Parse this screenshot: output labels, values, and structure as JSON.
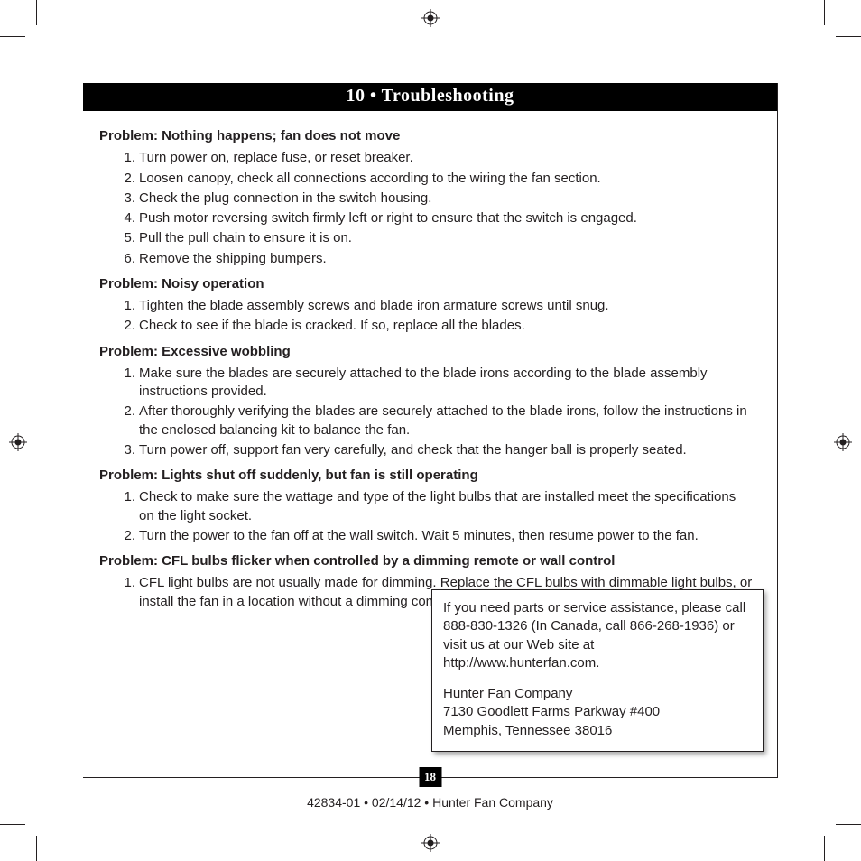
{
  "header": {
    "title": "10 • Troubleshooting"
  },
  "problems": [
    {
      "title": "Problem:  Nothing happens; fan does not move",
      "steps": [
        "Turn power on, replace fuse, or reset breaker.",
        "Loosen canopy, check all connections according to the wiring the fan section.",
        "Check the plug connection in the switch housing.",
        "Push motor reversing switch firmly left or right to ensure that the switch is engaged.",
        "Pull the pull chain to ensure it is on.",
        "Remove the shipping bumpers."
      ]
    },
    {
      "title": "Problem:  Noisy operation",
      "steps": [
        "Tighten the blade assembly screws and blade iron armature screws until snug.",
        "Check to see if the blade is cracked.  If so, replace all the blades."
      ]
    },
    {
      "title": "Problem:  Excessive wobbling",
      "steps": [
        "Make sure the blades are securely attached to the blade irons according to the blade assembly instructions provided.",
        "After thoroughly verifying the blades are securely attached to the blade irons, follow the instructions in the enclosed balancing kit to balance the fan.",
        "Turn power off, support fan very carefully, and check that the hanger ball is properly seated."
      ]
    },
    {
      "title": "Problem:  Lights shut off suddenly, but fan is still operating",
      "steps": [
        "Check to make sure the wattage and type of the light bulbs that are installed meet the specifications on the light socket.",
        "Turn the power to the fan off at the wall switch. Wait 5 minutes, then resume power to the fan."
      ]
    },
    {
      "title": "Problem:  CFL bulbs flicker when controlled by a dimming remote or wall control",
      "steps": [
        "CFL light bulbs are not usually made for dimming. Replace the CFL bulbs with dimmable light bulbs, or install the fan in a location without a dimming control."
      ]
    }
  ],
  "info_box": {
    "p1": "If you need parts or service assistance, please call 888-830-1326 (In Canada, call 866-268-1936) or visit us at our Web site at http://www.hunterfan.com.",
    "p2_l1": "Hunter Fan Company",
    "p2_l2": "7130 Goodlett Farms Parkway #400",
    "p2_l3": "Memphis, Tennessee 38016"
  },
  "page_number": "18",
  "footer": "42834-01  •  02/14/12  •  Hunter Fan Company",
  "colors": {
    "text": "#231f20",
    "header_bg": "#000000",
    "header_fg": "#ffffff",
    "page_bg": "#ffffff",
    "border": "#231f20"
  }
}
